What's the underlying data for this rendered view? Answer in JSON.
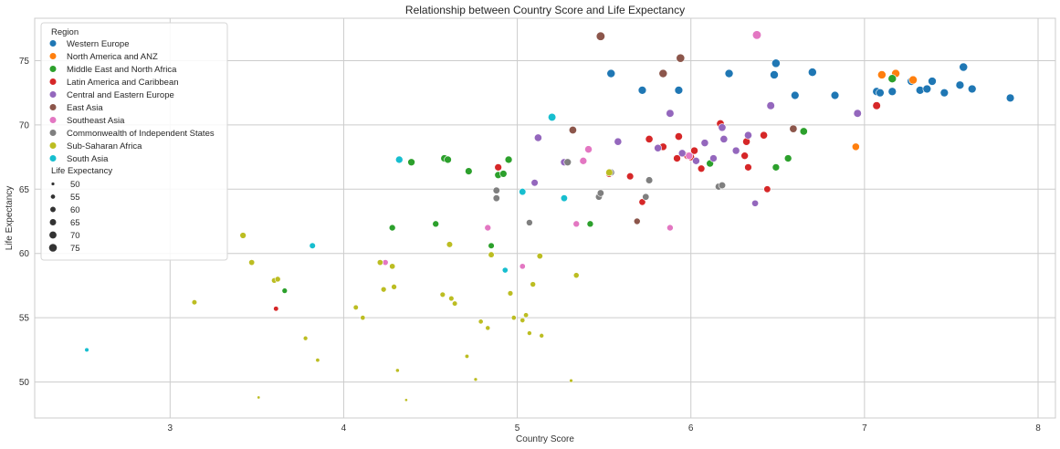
{
  "chart_data": {
    "type": "scatter",
    "title": "Relationship between Country Score and Life Expectancy",
    "xlabel": "Country Score",
    "ylabel": "Life Expectancy",
    "xlim": [
      2.22,
      8.1
    ],
    "ylim": [
      47.2,
      78.3
    ],
    "xticks": [
      3,
      4,
      5,
      6,
      7,
      8
    ],
    "yticks": [
      50,
      55,
      60,
      65,
      70,
      75
    ],
    "grid": true,
    "legend": {
      "placement": "top-left",
      "hue_title": "Region",
      "size_title": "Life Expectancy",
      "size_values": [
        50,
        55,
        60,
        65,
        70,
        75
      ]
    },
    "series": [
      {
        "name": "Western Europe",
        "color": "#1f77b4",
        "points": [
          [
            5.54,
            74.0
          ],
          [
            5.72,
            72.7
          ],
          [
            5.93,
            72.7
          ],
          [
            6.22,
            74.0
          ],
          [
            6.49,
            74.8
          ],
          [
            6.48,
            73.9
          ],
          [
            6.6,
            72.3
          ],
          [
            6.7,
            74.1
          ],
          [
            6.83,
            72.3
          ],
          [
            7.07,
            72.6
          ],
          [
            7.09,
            72.5
          ],
          [
            7.16,
            72.6
          ],
          [
            7.27,
            73.4
          ],
          [
            7.32,
            72.7
          ],
          [
            7.36,
            72.8
          ],
          [
            7.39,
            73.4
          ],
          [
            7.46,
            72.5
          ],
          [
            7.55,
            73.1
          ],
          [
            7.57,
            74.5
          ],
          [
            7.62,
            72.8
          ],
          [
            7.84,
            72.1
          ]
        ]
      },
      {
        "name": "North America and ANZ",
        "color": "#ff7f0e",
        "points": [
          [
            6.95,
            68.3
          ],
          [
            7.1,
            73.9
          ],
          [
            7.18,
            74.0
          ],
          [
            7.28,
            73.5
          ]
        ]
      },
      {
        "name": "Middle East and North Africa",
        "color": "#2ca02c",
        "points": [
          [
            3.66,
            57.1
          ],
          [
            4.28,
            62.0
          ],
          [
            4.39,
            67.1
          ],
          [
            4.53,
            62.3
          ],
          [
            4.58,
            67.4
          ],
          [
            4.6,
            67.3
          ],
          [
            4.72,
            66.4
          ],
          [
            4.85,
            60.6
          ],
          [
            4.89,
            66.1
          ],
          [
            4.92,
            66.2
          ],
          [
            4.95,
            67.3
          ],
          [
            5.42,
            62.3
          ],
          [
            6.11,
            67.0
          ],
          [
            6.49,
            66.7
          ],
          [
            6.56,
            67.4
          ],
          [
            6.65,
            69.5
          ],
          [
            7.16,
            73.6
          ]
        ]
      },
      {
        "name": "Latin America and Caribbean",
        "color": "#d62728",
        "points": [
          [
            3.61,
            55.7
          ],
          [
            4.89,
            66.7
          ],
          [
            5.53,
            66.2
          ],
          [
            5.65,
            66.0
          ],
          [
            5.72,
            64.0
          ],
          [
            5.76,
            68.9
          ],
          [
            5.84,
            68.3
          ],
          [
            5.92,
            67.4
          ],
          [
            5.93,
            69.1
          ],
          [
            5.98,
            67.6
          ],
          [
            6.0,
            67.5
          ],
          [
            6.02,
            68.0
          ],
          [
            6.06,
            66.6
          ],
          [
            6.17,
            70.1
          ],
          [
            6.31,
            67.6
          ],
          [
            6.32,
            68.7
          ],
          [
            6.33,
            66.7
          ],
          [
            6.42,
            69.2
          ],
          [
            6.44,
            65.0
          ],
          [
            7.07,
            71.5
          ]
        ]
      },
      {
        "name": "Central and Eastern Europe",
        "color": "#9467bd",
        "points": [
          [
            5.1,
            65.5
          ],
          [
            5.12,
            69.0
          ],
          [
            5.27,
            67.1
          ],
          [
            5.58,
            68.7
          ],
          [
            5.81,
            68.2
          ],
          [
            5.88,
            70.9
          ],
          [
            5.95,
            67.8
          ],
          [
            6.03,
            67.2
          ],
          [
            6.08,
            68.6
          ],
          [
            6.13,
            67.4
          ],
          [
            6.18,
            69.8
          ],
          [
            6.19,
            68.9
          ],
          [
            6.26,
            68.0
          ],
          [
            6.33,
            69.2
          ],
          [
            6.37,
            63.9
          ],
          [
            6.46,
            71.5
          ],
          [
            6.96,
            70.9
          ]
        ]
      },
      {
        "name": "East Asia",
        "color": "#8c564b",
        "points": [
          [
            5.32,
            69.6
          ],
          [
            5.48,
            76.9
          ],
          [
            5.69,
            62.5
          ],
          [
            5.84,
            74.0
          ],
          [
            5.94,
            75.2
          ],
          [
            6.59,
            69.7
          ]
        ]
      },
      {
        "name": "Southeast Asia",
        "color": "#e377c2",
        "points": [
          [
            4.24,
            59.3
          ],
          [
            4.83,
            62.0
          ],
          [
            5.03,
            59.0
          ],
          [
            5.34,
            62.3
          ],
          [
            5.38,
            67.2
          ],
          [
            5.41,
            68.1
          ],
          [
            5.88,
            62.0
          ],
          [
            5.99,
            67.6
          ],
          [
            6.38,
            77.0
          ]
        ]
      },
      {
        "name": "Commonwealth of Independent States",
        "color": "#7f7f7f",
        "points": [
          [
            4.88,
            64.9
          ],
          [
            4.88,
            64.3
          ],
          [
            5.07,
            62.4
          ],
          [
            5.29,
            67.1
          ],
          [
            5.47,
            64.4
          ],
          [
            5.48,
            64.7
          ],
          [
            5.54,
            66.3
          ],
          [
            5.74,
            64.4
          ],
          [
            5.76,
            65.7
          ],
          [
            6.16,
            65.2
          ],
          [
            6.18,
            65.3
          ]
        ]
      },
      {
        "name": "Sub-Saharan Africa",
        "color": "#bcbd22",
        "points": [
          [
            3.14,
            56.2
          ],
          [
            3.42,
            61.4
          ],
          [
            3.47,
            59.3
          ],
          [
            3.51,
            48.8
          ],
          [
            3.6,
            57.9
          ],
          [
            3.62,
            58.0
          ],
          [
            3.78,
            53.4
          ],
          [
            3.85,
            51.7
          ],
          [
            4.07,
            55.8
          ],
          [
            4.11,
            55.0
          ],
          [
            4.21,
            59.3
          ],
          [
            4.23,
            57.2
          ],
          [
            4.28,
            59.0
          ],
          [
            4.29,
            57.4
          ],
          [
            4.31,
            50.9
          ],
          [
            4.36,
            48.6
          ],
          [
            4.57,
            56.8
          ],
          [
            4.61,
            60.7
          ],
          [
            4.62,
            56.5
          ],
          [
            4.64,
            56.1
          ],
          [
            4.71,
            52.0
          ],
          [
            4.76,
            50.2
          ],
          [
            4.79,
            54.7
          ],
          [
            4.83,
            54.2
          ],
          [
            4.85,
            59.9
          ],
          [
            4.96,
            56.9
          ],
          [
            4.98,
            55.0
          ],
          [
            5.03,
            54.8
          ],
          [
            5.05,
            55.2
          ],
          [
            5.07,
            53.8
          ],
          [
            5.09,
            57.6
          ],
          [
            5.13,
            59.8
          ],
          [
            5.14,
            53.6
          ],
          [
            5.31,
            50.1
          ],
          [
            5.34,
            58.3
          ],
          [
            5.53,
            66.3
          ]
        ]
      },
      {
        "name": "South Asia",
        "color": "#17becf",
        "points": [
          [
            2.52,
            52.5
          ],
          [
            3.82,
            60.6
          ],
          [
            4.32,
            67.3
          ],
          [
            4.93,
            58.7
          ],
          [
            5.03,
            64.8
          ],
          [
            5.2,
            70.6
          ],
          [
            5.27,
            64.3
          ]
        ]
      }
    ]
  }
}
